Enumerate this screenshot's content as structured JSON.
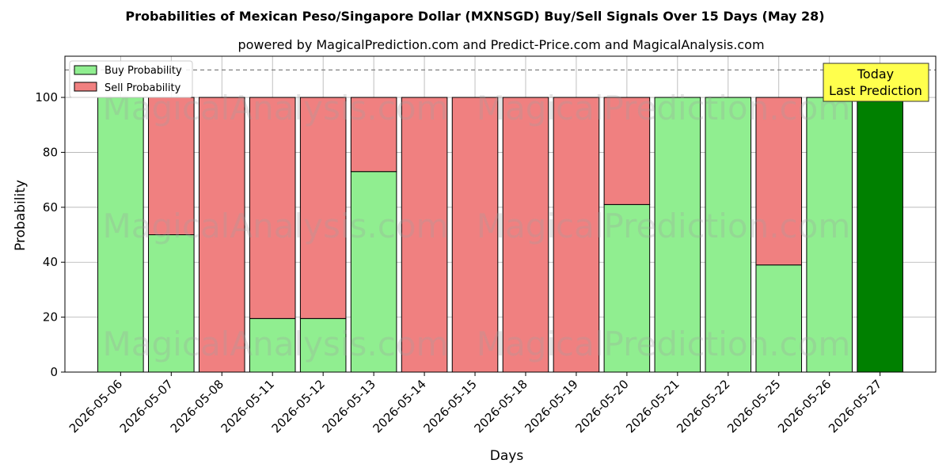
{
  "title": "Probabilities of Mexican Peso/Singapore Dollar (MXNSGD) Buy/Sell Signals Over 15 Days (May 28)",
  "subtitle": "powered by MagicalPrediction.com and Predict-Price.com and MagicalAnalysis.com",
  "watermarks": [
    "MagicalAnalysis.com",
    "MagicalPrediction.com"
  ],
  "annotation": {
    "line1": "Today",
    "line2": "Last Prediction"
  },
  "legend": {
    "buy": "Buy Probability",
    "sell": "Sell Probability"
  },
  "colors": {
    "buy": "#90ee90",
    "sell": "#f08080",
    "today": "#008000",
    "annotation_bg": "#ffff4d",
    "threshold_line": "#808080"
  },
  "chart_data": {
    "type": "bar",
    "stacked": true,
    "xlabel": "Days",
    "ylabel": "Probability",
    "ylim": [
      0,
      115
    ],
    "yticks": [
      0,
      20,
      40,
      60,
      80,
      100
    ],
    "threshold": 110,
    "grid": true,
    "legend_position": "top-left",
    "categories": [
      "2026-05-06",
      "2026-05-07",
      "2026-05-08",
      "2026-05-11",
      "2026-05-12",
      "2026-05-13",
      "2026-05-14",
      "2026-05-15",
      "2026-05-18",
      "2026-05-19",
      "2026-05-20",
      "2026-05-21",
      "2026-05-22",
      "2026-05-25",
      "2026-05-26",
      "2026-05-27"
    ],
    "series": [
      {
        "name": "Buy Probability",
        "values": [
          100,
          50,
          0,
          19.5,
          19.5,
          73,
          0,
          0,
          0,
          0,
          61,
          100,
          100,
          39,
          100,
          100
        ]
      },
      {
        "name": "Sell Probability",
        "values": [
          0,
          50,
          100,
          80.5,
          80.5,
          27,
          100,
          100,
          100,
          100,
          39,
          0,
          0,
          61,
          0,
          0
        ]
      }
    ],
    "highlight_last": true
  }
}
